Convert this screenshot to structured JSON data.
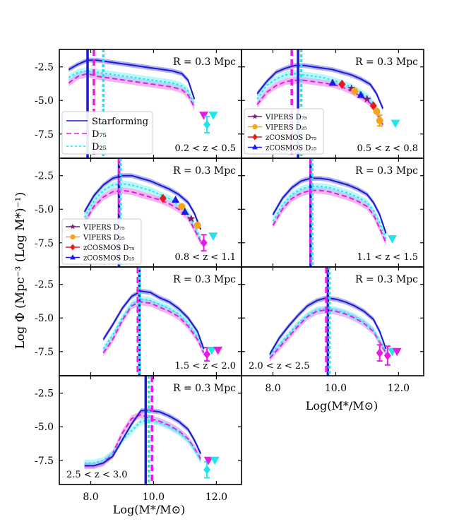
{
  "figure": {
    "ylabel": "Log Φ (Mpc⁻³ (Log M*)⁻¹)",
    "xlabel": "Log(M*/M⊙)"
  },
  "colors": {
    "starforming": "#1a1acf",
    "d75": "#e61be6",
    "d25": "#22e4ee",
    "d75_fill": "#e879e8",
    "d25_fill": "#7ff0f5",
    "vipers75": "#7a1f7a",
    "vipers25": "#f5a41c",
    "zcosmos75": "#e81a1a",
    "zcosmos25": "#1a1ae8"
  },
  "chart_data": {
    "type": "line",
    "xlim": [
      7.0,
      12.8
    ],
    "ylim": [
      -9.3,
      -1.2
    ],
    "xticks": [
      8.0,
      10.0,
      12.0
    ],
    "xtick_labels": [
      "8.0",
      "10.0",
      "12.0"
    ],
    "yticks": [
      -2.5,
      -5.0,
      -7.5
    ],
    "ytick_labels": [
      "-2.5",
      "-5.0",
      "-7.5"
    ],
    "legend_main": [
      {
        "name": "Starforming",
        "color": "#1a1acf",
        "style": "solid"
      },
      {
        "name": "D₇₅",
        "color": "#e61be6",
        "style": "dashed"
      },
      {
        "name": "D₂₅",
        "color": "#22e4ee",
        "style": "dotted"
      }
    ],
    "legend_points": [
      {
        "name": "VIPERS D₇₅",
        "color": "#7a1f7a",
        "marker": "star"
      },
      {
        "name": "VIPERS D₂₅",
        "color": "#f5a41c",
        "marker": "circle"
      },
      {
        "name": "zCOSMOS D₇₅",
        "color": "#e81a1a",
        "marker": "diamond"
      },
      {
        "name": "zCOSMOS D₂₅",
        "color": "#1a1ae8",
        "marker": "triangle"
      }
    ],
    "panels": [
      {
        "r_label": "R = 0.3 Mpc",
        "z_label": "0.2 < z < 0.5",
        "vlines": {
          "sf": 7.9,
          "d75": 8.1,
          "d25": 8.4
        },
        "x": [
          7.3,
          7.6,
          7.9,
          8.2,
          8.5,
          8.8,
          9.1,
          9.4,
          9.7,
          10.0,
          10.3,
          10.6,
          10.9,
          11.1,
          11.3
        ],
        "starforming": [
          -2.7,
          -2.3,
          -2.0,
          -2.0,
          -2.1,
          -2.2,
          -2.3,
          -2.4,
          -2.5,
          -2.6,
          -2.7,
          -2.8,
          -3.0,
          -3.5,
          -4.9
        ],
        "d75": [
          -3.7,
          -3.2,
          -3.0,
          -3.2,
          -3.3,
          -3.4,
          -3.5,
          -3.6,
          -3.7,
          -3.8,
          -3.9,
          -4.0,
          -4.2,
          -4.6,
          -5.5
        ],
        "d25": [
          -3.3,
          -2.9,
          -2.8,
          -2.9,
          -3.0,
          -3.1,
          -3.2,
          -3.3,
          -3.4,
          -3.5,
          -3.6,
          -3.7,
          -3.9,
          -4.3,
          -5.3
        ],
        "points": [
          {
            "x": 11.6,
            "y": -6.1,
            "color": "#e61be6",
            "marker": "tri_down"
          },
          {
            "x": 11.7,
            "y": -6.8,
            "color": "#22e4ee",
            "marker": "diamond",
            "err": 0.6
          },
          {
            "x": 11.9,
            "y": -6.1,
            "color": "#22e4ee",
            "marker": "tri_down"
          }
        ],
        "has_main_legend": true
      },
      {
        "r_label": "R = 0.3 Mpc",
        "z_label": "0.5 < z < 0.8",
        "vlines": {
          "sf": 8.8,
          "d75": 8.6,
          "d25": 8.9
        },
        "x": [
          7.5,
          7.8,
          8.1,
          8.4,
          8.7,
          9.0,
          9.3,
          9.6,
          9.9,
          10.2,
          10.5,
          10.8,
          11.1,
          11.3,
          11.5
        ],
        "starforming": [
          -4.5,
          -3.6,
          -2.9,
          -2.6,
          -2.4,
          -2.4,
          -2.5,
          -2.6,
          -2.7,
          -2.9,
          -3.1,
          -3.4,
          -3.8,
          -4.5,
          -5.6
        ],
        "d75": [
          -5.3,
          -4.4,
          -3.9,
          -3.6,
          -3.5,
          -3.5,
          -3.6,
          -3.7,
          -3.8,
          -4.0,
          -4.3,
          -4.7,
          -5.2,
          -5.9,
          -6.8
        ],
        "d25": [
          -4.9,
          -3.9,
          -3.4,
          -3.1,
          -3.0,
          -3.1,
          -3.2,
          -3.3,
          -3.5,
          -3.7,
          -4.0,
          -4.4,
          -4.9,
          -5.6,
          -6.7
        ],
        "points": [
          {
            "x": 9.9,
            "y": -3.7,
            "color": "#1a1ae8",
            "marker": "triangle"
          },
          {
            "x": 10.2,
            "y": -3.8,
            "color": "#e81a1a",
            "marker": "diamond"
          },
          {
            "x": 10.5,
            "y": -4.1,
            "color": "#7a1f7a",
            "marker": "star"
          },
          {
            "x": 10.6,
            "y": -4.3,
            "color": "#f5a41c",
            "marker": "circle"
          },
          {
            "x": 10.8,
            "y": -4.6,
            "color": "#1a1ae8",
            "marker": "triangle"
          },
          {
            "x": 11.0,
            "y": -4.9,
            "color": "#7a1f7a",
            "marker": "star"
          },
          {
            "x": 11.2,
            "y": -5.4,
            "color": "#e81a1a",
            "marker": "diamond"
          },
          {
            "x": 11.3,
            "y": -5.8,
            "color": "#f5a41c",
            "marker": "circle"
          },
          {
            "x": 11.4,
            "y": -6.5,
            "color": "#f5a41c",
            "marker": "circle",
            "err": 0.4
          },
          {
            "x": 11.9,
            "y": -6.7,
            "color": "#22e4ee",
            "marker": "tri_down"
          }
        ],
        "has_point_legend": true
      },
      {
        "r_label": "R = 0.3 Mpc",
        "z_label": "0.8 < z < 1.1",
        "vlines": {
          "sf": 8.9,
          "d75": 8.9,
          "d25": 8.95
        },
        "x": [
          7.8,
          8.1,
          8.4,
          8.7,
          9.0,
          9.3,
          9.6,
          9.9,
          10.2,
          10.5,
          10.8,
          11.1,
          11.3,
          11.5
        ],
        "starforming": [
          -5.2,
          -4.0,
          -3.2,
          -2.7,
          -2.5,
          -2.5,
          -2.7,
          -2.9,
          -3.2,
          -3.5,
          -3.9,
          -4.5,
          -5.3,
          -6.5
        ],
        "d75": [
          -6.0,
          -4.8,
          -4.1,
          -3.7,
          -3.6,
          -3.7,
          -3.9,
          -4.1,
          -4.3,
          -4.6,
          -5.0,
          -5.6,
          -6.5,
          -7.4
        ],
        "d25": [
          -5.6,
          -4.4,
          -3.6,
          -3.2,
          -3.1,
          -3.2,
          -3.4,
          -3.6,
          -3.9,
          -4.2,
          -4.7,
          -5.3,
          -6.2,
          -7.2
        ],
        "points": [
          {
            "x": 10.3,
            "y": -4.2,
            "color": "#e81a1a",
            "marker": "diamond"
          },
          {
            "x": 10.7,
            "y": -4.3,
            "color": "#1a1ae8",
            "marker": "triangle"
          },
          {
            "x": 10.9,
            "y": -4.8,
            "color": "#f5a41c",
            "marker": "circle"
          },
          {
            "x": 11.0,
            "y": -5.2,
            "color": "#1a1ae8",
            "marker": "triangle"
          },
          {
            "x": 11.2,
            "y": -5.7,
            "color": "#7a1f7a",
            "marker": "star"
          },
          {
            "x": 11.4,
            "y": -6.2,
            "color": "#f5a41c",
            "marker": "circle"
          },
          {
            "x": 11.6,
            "y": -7.5,
            "color": "#e61be6",
            "marker": "diamond",
            "err": 0.6
          },
          {
            "x": 11.9,
            "y": -7.0,
            "color": "#22e4ee",
            "marker": "tri_down"
          }
        ],
        "has_point_legend": true
      },
      {
        "r_label": "R = 0.3 Mpc",
        "z_label": "1.1 < z < 1.5",
        "vlines": {
          "sf": 9.2,
          "d75": 9.2,
          "d25": 9.25
        },
        "x": [
          8.0,
          8.3,
          8.6,
          8.9,
          9.2,
          9.5,
          9.8,
          10.1,
          10.4,
          10.7,
          11.0,
          11.2,
          11.4,
          11.6
        ],
        "starforming": [
          -5.4,
          -4.2,
          -3.4,
          -2.9,
          -2.7,
          -2.7,
          -2.8,
          -3.0,
          -3.2,
          -3.5,
          -3.9,
          -4.5,
          -5.4,
          -6.8
        ],
        "d75": [
          -6.2,
          -5.0,
          -4.2,
          -3.8,
          -3.6,
          -3.6,
          -3.7,
          -3.9,
          -4.1,
          -4.4,
          -4.8,
          -5.4,
          -6.4,
          -7.5
        ],
        "d25": [
          -5.9,
          -4.7,
          -3.9,
          -3.5,
          -3.3,
          -3.3,
          -3.4,
          -3.6,
          -3.8,
          -4.1,
          -4.5,
          -5.1,
          -6.0,
          -7.2
        ],
        "points": [
          {
            "x": 11.8,
            "y": -7.2,
            "color": "#22e4ee",
            "marker": "tri_down"
          }
        ]
      },
      {
        "r_label": "R = 0.3 Mpc",
        "z_label": "1.5 < z < 2.0",
        "vlines": {
          "sf": 9.55,
          "d75": 9.5,
          "d25": 9.55
        },
        "x": [
          8.4,
          8.7,
          9.0,
          9.3,
          9.6,
          9.9,
          10.2,
          10.5,
          10.8,
          11.1,
          11.4,
          11.6
        ],
        "starforming": [
          -6.6,
          -5.5,
          -4.3,
          -3.4,
          -3.0,
          -3.1,
          -3.5,
          -3.8,
          -4.3,
          -5.0,
          -6.0,
          -7.3
        ],
        "d75": [
          -7.6,
          -6.6,
          -5.2,
          -4.1,
          -3.8,
          -3.9,
          -4.2,
          -4.5,
          -4.9,
          -5.6,
          -6.6,
          -7.6
        ],
        "d25": [
          -7.3,
          -6.3,
          -5.0,
          -4.0,
          -3.6,
          -3.7,
          -4.0,
          -4.3,
          -4.7,
          -5.4,
          -6.4,
          -7.4
        ],
        "points": [
          {
            "x": 11.7,
            "y": -7.7,
            "color": "#e61be6",
            "marker": "diamond",
            "err": 0.5
          },
          {
            "x": 11.85,
            "y": -7.4,
            "color": "#22e4ee",
            "marker": "tri_down"
          },
          {
            "x": 12.05,
            "y": -7.4,
            "color": "#e61be6",
            "marker": "tri_down"
          }
        ]
      },
      {
        "r_label": "R = 0.3 Mpc",
        "z_label": "2.0 < z < 2.5",
        "vlines": {
          "sf": 9.75,
          "d75": 9.7,
          "d25": 9.8
        },
        "x": [
          7.9,
          8.2,
          8.5,
          8.8,
          9.1,
          9.4,
          9.7,
          10.0,
          10.3,
          10.6,
          10.9,
          11.2,
          11.4,
          11.6
        ],
        "starforming": [
          -7.7,
          -6.5,
          -5.6,
          -4.8,
          -4.1,
          -3.7,
          -3.5,
          -3.6,
          -3.8,
          -4.1,
          -4.5,
          -5.1,
          -6.0,
          -7.3
        ],
        "d75": [
          -8.0,
          -7.2,
          -6.4,
          -5.6,
          -4.9,
          -4.5,
          -4.4,
          -4.5,
          -4.7,
          -5.0,
          -5.4,
          -6.0,
          -6.8,
          -7.6
        ],
        "d25": [
          -7.8,
          -7.0,
          -6.2,
          -5.4,
          -4.8,
          -4.4,
          -4.3,
          -4.4,
          -4.6,
          -4.9,
          -5.3,
          -5.9,
          -6.7,
          -7.5
        ],
        "points": [
          {
            "x": 11.4,
            "y": -7.6,
            "color": "#e61be6",
            "marker": "diamond",
            "err": 0.6
          },
          {
            "x": 11.65,
            "y": -7.8,
            "color": "#e61be6",
            "marker": "diamond",
            "err": 0.7
          },
          {
            "x": 11.8,
            "y": -7.5,
            "color": "#22e4ee",
            "marker": "tri_down"
          },
          {
            "x": 11.95,
            "y": -7.5,
            "color": "#e61be6",
            "marker": "tri_down"
          }
        ]
      },
      {
        "r_label": "R = 0.3 Mpc",
        "z_label": "2.5 < z < 3.0",
        "vlines": {
          "sf": 9.75,
          "d75": 9.95,
          "d25": 9.85
        },
        "x": [
          7.8,
          8.1,
          8.4,
          8.7,
          9.0,
          9.3,
          9.6,
          9.9,
          10.2,
          10.5,
          10.8,
          11.1,
          11.3,
          11.5
        ],
        "starforming": [
          -7.9,
          -7.9,
          -7.7,
          -7.2,
          -6.0,
          -4.8,
          -3.8,
          -3.8,
          -3.9,
          -4.2,
          -4.6,
          -5.2,
          -6.0,
          -7.0
        ],
        "d75": [
          -7.9,
          -7.9,
          -7.7,
          -7.0,
          -5.5,
          -4.4,
          -4.1,
          -4.4,
          -4.6,
          -4.9,
          -5.3,
          -5.9,
          -6.6,
          -7.4
        ],
        "d25": [
          -7.7,
          -7.7,
          -7.5,
          -7.0,
          -6.0,
          -5.3,
          -4.6,
          -4.5,
          -4.7,
          -5.0,
          -5.4,
          -6.0,
          -6.7,
          -7.5
        ],
        "points": [
          {
            "x": 11.7,
            "y": -8.2,
            "color": "#22e4ee",
            "marker": "diamond",
            "err": 0.6
          },
          {
            "x": 11.75,
            "y": -7.5,
            "color": "#e61be6",
            "marker": "tri_down"
          },
          {
            "x": 11.95,
            "y": -7.5,
            "color": "#22e4ee",
            "marker": "tri_down"
          }
        ]
      }
    ]
  }
}
